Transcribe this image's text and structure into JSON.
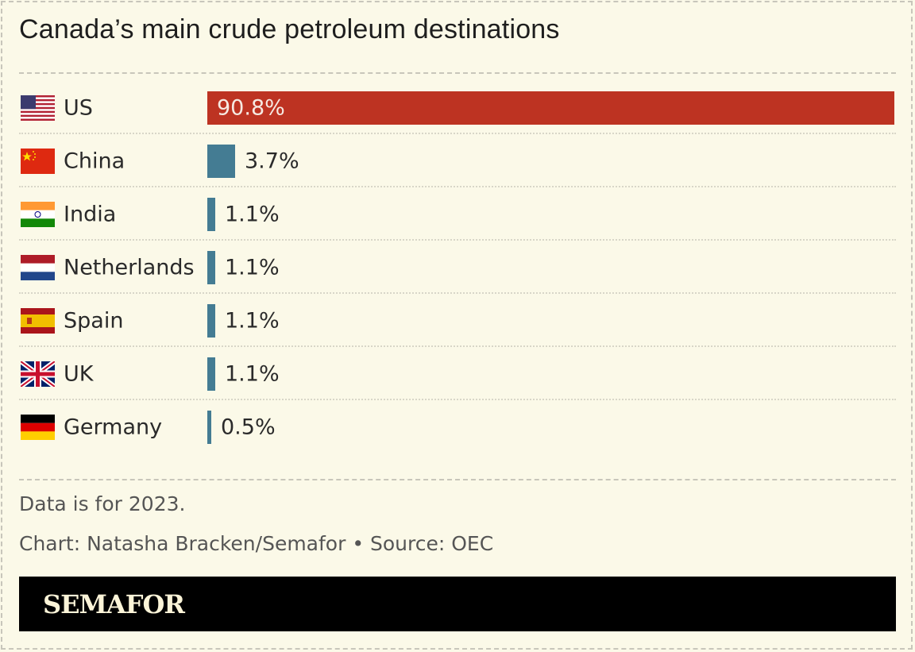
{
  "title": "Canada’s main crude petroleum destinations",
  "rows": [
    {
      "country": "US",
      "flag": "us-flag-icon",
      "value": 90.8,
      "label": "90.8%",
      "color": "#bd3322"
    },
    {
      "country": "China",
      "flag": "china-flag-icon",
      "value": 3.7,
      "label": "3.7%",
      "color": "#447c93"
    },
    {
      "country": "India",
      "flag": "india-flag-icon",
      "value": 1.1,
      "label": "1.1%",
      "color": "#447c93"
    },
    {
      "country": "Netherlands",
      "flag": "netherlands-flag-icon",
      "value": 1.1,
      "label": "1.1%",
      "color": "#447c93"
    },
    {
      "country": "Spain",
      "flag": "spain-flag-icon",
      "value": 1.1,
      "label": "1.1%",
      "color": "#447c93"
    },
    {
      "country": "UK",
      "flag": "uk-flag-icon",
      "value": 1.1,
      "label": "1.1%",
      "color": "#447c93"
    },
    {
      "country": "Germany",
      "flag": "germany-flag-icon",
      "value": 0.5,
      "label": "0.5%",
      "color": "#447c93"
    }
  ],
  "footer": {
    "note": "Data is for 2023.",
    "credit": "Chart: Natasha Bracken/Semafor • Source: OEC",
    "brand": "SEMAFOR"
  },
  "chart_data": {
    "type": "bar",
    "orientation": "horizontal",
    "title": "Canada’s main crude petroleum destinations",
    "categories": [
      "US",
      "China",
      "India",
      "Netherlands",
      "Spain",
      "UK",
      "Germany"
    ],
    "values": [
      90.8,
      3.7,
      1.1,
      1.1,
      1.1,
      1.1,
      0.5
    ],
    "value_labels": [
      "90.8%",
      "3.7%",
      "1.1%",
      "1.1%",
      "1.1%",
      "1.1%",
      "0.5%"
    ],
    "unit": "%",
    "xlabel": "",
    "ylabel": "",
    "grid": false,
    "legend": null,
    "annotations": [
      "Data is for 2023.",
      "Chart: Natasha Bracken/Semafor • Source: OEC"
    ]
  }
}
